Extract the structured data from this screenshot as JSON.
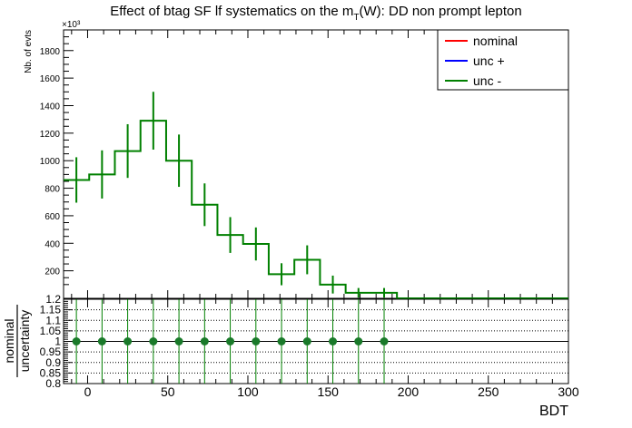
{
  "chart_data": [
    {
      "type": "histogram",
      "title_main": "Effect of btag SF lf systematics on the m",
      "title_sub": "T",
      "title_rest": "(W): DD non prompt lepton",
      "ylabel": "Nb. of evts",
      "exponent": "×10³",
      "ylim": [
        0,
        1950
      ],
      "yticks": [
        200,
        400,
        600,
        800,
        1000,
        1200,
        1400,
        1600,
        1800
      ],
      "ytick_labels": [
        "200",
        "400",
        "600",
        "800",
        "1000",
        "1200",
        "1400",
        "1600",
        "1800"
      ],
      "xlim": [
        -15,
        300
      ],
      "legend_position": "top-right",
      "legend": [
        {
          "label": "nominal",
          "color": "#ff0000"
        },
        {
          "label": "unc +",
          "color": "#0000ff"
        },
        {
          "label": "unc -",
          "color": "#008000"
        }
      ],
      "bin_edges": [
        -15,
        1,
        17,
        33,
        49,
        65,
        81,
        97,
        113,
        129,
        145,
        161,
        177,
        193,
        300
      ],
      "values": [
        860,
        900,
        1070,
        1290,
        1000,
        680,
        460,
        395,
        175,
        280,
        100,
        40,
        40,
        0
      ],
      "errors": [
        165,
        175,
        195,
        210,
        190,
        155,
        130,
        120,
        80,
        105,
        65,
        35,
        35,
        0
      ],
      "series_color": "#008000"
    },
    {
      "type": "scatter",
      "ylabel_top": "nominal",
      "ylabel_bottom": "uncertainty",
      "xlabel": "BDT",
      "ylim": [
        0.8,
        1.2
      ],
      "yticks": [
        0.8,
        0.85,
        0.9,
        0.95,
        1,
        1.05,
        1.1,
        1.15,
        1.2
      ],
      "ytick_labels": [
        "0.8",
        "0.85",
        "0.9",
        "0.95",
        "1",
        "1.05",
        "1.1",
        "1.15",
        "1.2"
      ],
      "xlim": [
        -15,
        300
      ],
      "xticks": [
        0,
        50,
        100,
        150,
        200,
        250,
        300
      ],
      "xtick_labels": [
        "0",
        "50",
        "100",
        "150",
        "200",
        "250",
        "300"
      ],
      "grid": true,
      "x": [
        -7,
        9,
        25,
        41,
        57,
        73,
        89,
        105,
        121,
        137,
        153,
        169,
        185
      ],
      "y": [
        1,
        1,
        1,
        1,
        1,
        1,
        1,
        1,
        1,
        1,
        1,
        1,
        1
      ],
      "marker_color": "#1a7a2a",
      "line_color": "#008000"
    }
  ]
}
